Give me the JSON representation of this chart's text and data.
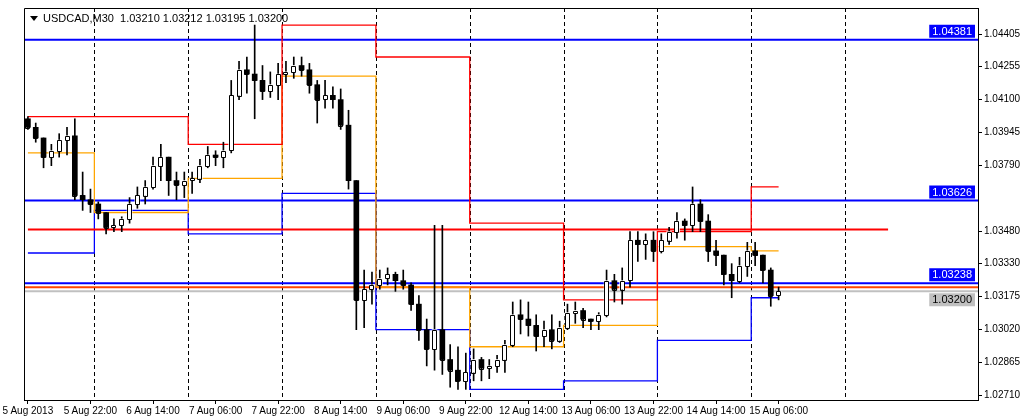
{
  "chart_data": {
    "type": "candlestick",
    "title": "USDCAD,M30  1.03210 1.03212 1.03195 1.03200",
    "color": "#000000",
    "categories": [
      "5 Aug 2013",
      null,
      null,
      null,
      null,
      null,
      null,
      null,
      "5 Aug 22:00",
      null,
      null,
      null,
      null,
      null,
      null,
      null,
      "6 Aug 14:00",
      null,
      null,
      null,
      null,
      null,
      null,
      null,
      "7 Aug 06:00",
      null,
      null,
      null,
      null,
      null,
      null,
      null,
      "7 Aug 22:00",
      null,
      null,
      null,
      null,
      null,
      null,
      null,
      "8 Aug 14:00",
      null,
      null,
      null,
      null,
      null,
      null,
      null,
      "9 Aug 06:00",
      null,
      null,
      null,
      null,
      null,
      null,
      null,
      "9 Aug 22:00",
      null,
      null,
      null,
      null,
      null,
      null,
      null,
      "12 Aug 14:00",
      null,
      null,
      null,
      null,
      null,
      null,
      null,
      "13 Aug 06:00",
      null,
      null,
      null,
      null,
      null,
      null,
      null,
      "13 Aug 22:00",
      null,
      null,
      null,
      null,
      null,
      null,
      null,
      "14 Aug 14:00",
      null,
      null,
      null,
      null,
      null,
      null,
      null,
      "15 Aug 06:00",
      null,
      null,
      null,
      null,
      null,
      null,
      null,
      null,
      null,
      null,
      null,
      null,
      null,
      null,
      null,
      null,
      null,
      null,
      null,
      null,
      null,
      null,
      null,
      null,
      null
    ],
    "ohlc": [
      [
        1.0401,
        1.0402,
        1.0396,
        1.0397
      ],
      [
        1.0397,
        1.0399,
        1.039,
        1.0392
      ],
      [
        1.0392,
        1.0392,
        1.0378,
        1.0383
      ],
      [
        1.0383,
        1.0389,
        1.0379,
        1.0386
      ],
      [
        1.0386,
        1.0394,
        1.0383,
        1.0391
      ],
      [
        1.0391,
        1.0397,
        1.0384,
        1.0393
      ],
      [
        1.0393,
        1.0401,
        1.0363,
        1.0365
      ],
      [
        1.0365,
        1.0376,
        1.0358,
        1.0363
      ],
      [
        1.0363,
        1.0368,
        1.0357,
        1.0361
      ],
      [
        1.0361,
        1.0362,
        1.0354,
        1.0357
      ],
      [
        1.0357,
        1.0357,
        1.0347,
        1.035
      ],
      [
        1.035,
        1.0354,
        1.0348,
        1.0351
      ],
      [
        1.0351,
        1.0355,
        1.0348,
        1.0354
      ],
      [
        1.0354,
        1.0364,
        1.0352,
        1.0361
      ],
      [
        1.0361,
        1.0369,
        1.0359,
        1.0365
      ],
      [
        1.0365,
        1.0372,
        1.0361,
        1.0369
      ],
      [
        1.0369,
        1.0383,
        1.0368,
        1.0379
      ],
      [
        1.0379,
        1.0389,
        1.0372,
        1.0383
      ],
      [
        1.0383,
        1.0383,
        1.0365,
        1.0372
      ],
      [
        1.0372,
        1.0376,
        1.0363,
        1.037
      ],
      [
        1.037,
        1.0376,
        1.0364,
        1.0372
      ],
      [
        1.0372,
        1.0376,
        1.0366,
        1.0373
      ],
      [
        1.0373,
        1.0382,
        1.0371,
        1.0379
      ],
      [
        1.0379,
        1.0388,
        1.0378,
        1.0384
      ],
      [
        1.0384,
        1.0386,
        1.0379,
        1.0383
      ],
      [
        1.0383,
        1.039,
        1.0378,
        1.0386
      ],
      [
        1.0386,
        1.0419,
        1.0385,
        1.0412
      ],
      [
        1.0412,
        1.0428,
        1.041,
        1.0424
      ],
      [
        1.0424,
        1.043,
        1.0413,
        1.0422
      ],
      [
        1.0422,
        1.0445,
        1.0401,
        1.0419
      ],
      [
        1.0419,
        1.0426,
        1.041,
        1.0414
      ],
      [
        1.0414,
        1.0423,
        1.0411,
        1.0417
      ],
      [
        1.0417,
        1.0427,
        1.041,
        1.0422
      ],
      [
        1.0422,
        1.0428,
        1.0418,
        1.0423
      ],
      [
        1.0423,
        1.043,
        1.042,
        1.0426
      ],
      [
        1.0426,
        1.043,
        1.0421,
        1.0424
      ],
      [
        1.0424,
        1.0427,
        1.0413,
        1.0417
      ],
      [
        1.0417,
        1.0419,
        1.0399,
        1.041
      ],
      [
        1.041,
        1.0419,
        1.0406,
        1.0412
      ],
      [
        1.0412,
        1.0416,
        1.0406,
        1.041
      ],
      [
        1.041,
        1.0415,
        1.0396,
        1.0398
      ],
      [
        1.0398,
        1.0405,
        1.0368,
        1.0372
      ],
      [
        1.0372,
        1.0372,
        1.0302,
        1.0316
      ],
      [
        1.0316,
        1.033,
        1.0303,
        1.0321
      ],
      [
        1.0321,
        1.0329,
        1.0314,
        1.0323
      ],
      [
        1.0323,
        1.033,
        1.0321,
        1.0326
      ],
      [
        1.0326,
        1.0331,
        1.0323,
        1.0328
      ],
      [
        1.0328,
        1.0329,
        1.032,
        1.0325
      ],
      [
        1.0325,
        1.033,
        1.0321,
        1.0323
      ],
      [
        1.0323,
        1.0324,
        1.0311,
        1.0314
      ],
      [
        1.0314,
        1.0318,
        1.0297,
        1.0302
      ],
      [
        1.0302,
        1.0307,
        1.0285,
        1.0293
      ],
      [
        1.0293,
        1.0351,
        1.0283,
        1.0302
      ],
      [
        1.0302,
        1.0351,
        1.0281,
        1.0288
      ],
      [
        1.0288,
        1.0295,
        1.0275,
        1.0283
      ],
      [
        1.0283,
        1.0294,
        1.0274,
        1.0278
      ],
      [
        1.0278,
        1.0291,
        1.0274,
        1.0282
      ],
      [
        1.0282,
        1.0293,
        1.0278,
        1.0288
      ],
      [
        1.0288,
        1.0289,
        1.0278,
        1.0284
      ],
      [
        1.0284,
        1.0288,
        1.0279,
        1.0285
      ],
      [
        1.0285,
        1.029,
        1.0282,
        1.0288
      ],
      [
        1.0288,
        1.0297,
        1.0282,
        1.0295
      ],
      [
        1.0295,
        1.0315,
        1.0294,
        1.0309
      ],
      [
        1.0309,
        1.0316,
        1.03,
        1.0307
      ],
      [
        1.0307,
        1.0315,
        1.0299,
        1.0304
      ],
      [
        1.0304,
        1.0309,
        1.0292,
        1.0299
      ],
      [
        1.0299,
        1.0306,
        1.0294,
        1.0302
      ],
      [
        1.0302,
        1.0309,
        1.0293,
        1.0297
      ],
      [
        1.0297,
        1.0306,
        1.0296,
        1.0303
      ],
      [
        1.0303,
        1.0314,
        1.0302,
        1.031
      ],
      [
        1.031,
        1.0315,
        1.0305,
        1.0311
      ],
      [
        1.0311,
        1.0312,
        1.0303,
        1.0307
      ],
      [
        1.0307,
        1.0307,
        1.0302,
        1.0306
      ],
      [
        1.0306,
        1.031,
        1.0302,
        1.0309
      ],
      [
        1.0309,
        1.033,
        1.0308,
        1.0325
      ],
      [
        1.0325,
        1.0328,
        1.0315,
        1.0321
      ],
      [
        1.0321,
        1.0331,
        1.0314,
        1.0325
      ],
      [
        1.0325,
        1.0348,
        1.0322,
        1.0344
      ],
      [
        1.0344,
        1.0348,
        1.0334,
        1.0342
      ],
      [
        1.0342,
        1.0347,
        1.0335,
        1.0344
      ],
      [
        1.0344,
        1.0348,
        1.0334,
        1.0339
      ],
      [
        1.0339,
        1.0347,
        1.0338,
        1.0344
      ],
      [
        1.0344,
        1.035,
        1.0342,
        1.0348
      ],
      [
        1.0348,
        1.0357,
        1.0345,
        1.0353
      ],
      [
        1.0353,
        1.0354,
        1.0344,
        1.0351
      ],
      [
        1.0351,
        1.0369,
        1.0348,
        1.0361
      ],
      [
        1.0361,
        1.0363,
        1.0348,
        1.0353
      ],
      [
        1.0353,
        1.0356,
        1.0334,
        1.0339
      ],
      [
        1.0339,
        1.0344,
        1.0332,
        1.0337
      ],
      [
        1.0337,
        1.0337,
        1.0323,
        1.0328
      ],
      [
        1.0328,
        1.0333,
        1.0317,
        1.0325
      ],
      [
        1.0325,
        1.0336,
        1.0324,
        1.0332
      ],
      [
        1.0332,
        1.0343,
        1.0327,
        1.0339
      ],
      [
        1.0339,
        1.0343,
        1.0332,
        1.0337
      ],
      [
        1.0337,
        1.0337,
        1.0324,
        1.033
      ],
      [
        1.033,
        1.0331,
        1.0313,
        1.0318
      ],
      [
        1.0318,
        1.0322,
        1.0316,
        1.032
      ],
      null,
      null,
      null,
      null,
      null,
      null,
      null,
      null,
      null,
      null,
      null,
      null,
      null,
      null,
      null,
      null,
      null,
      null,
      null,
      null,
      null,
      null,
      null,
      null,
      null
    ],
    "colors": [
      "#000000",
      "#000000",
      "#000000",
      "#ffffff",
      "#ffffff",
      "#ffffff",
      "#000000",
      "#000000",
      "#000000",
      "#000000",
      "#000000",
      "#ffffff",
      "#ffffff",
      "#ffffff",
      "#ffffff",
      "#ffffff",
      "#ffffff",
      "#ffffff",
      "#000000",
      "#000000",
      "#ffffff",
      "#ffffff",
      "#ffffff",
      "#ffffff",
      "#000000",
      "#ffffff",
      "#ffffff",
      "#ffffff",
      "#000000",
      "#000000",
      "#000000",
      "#ffffff",
      "#ffffff",
      "#ffffff",
      "#ffffff",
      "#000000",
      "#000000",
      "#000000",
      "#ffffff",
      "#000000",
      "#000000",
      "#000000",
      "#000000",
      "#ffffff",
      "#ffffff",
      "#ffffff",
      "#ffffff",
      "#000000",
      "#000000",
      "#000000",
      "#000000",
      "#000000",
      "#ffffff",
      "#000000",
      "#000000",
      "#000000",
      "#ffffff",
      "#ffffff",
      "#000000",
      "#ffffff",
      "#ffffff",
      "#ffffff",
      "#ffffff",
      "#000000",
      "#000000",
      "#000000",
      "#ffffff",
      "#000000",
      "#ffffff",
      "#ffffff",
      "#ffffff",
      "#000000",
      "#000000",
      "#ffffff",
      "#ffffff",
      "#000000",
      "#ffffff",
      "#ffffff",
      "#000000",
      "#ffffff",
      "#000000",
      "#ffffff",
      "#ffffff",
      "#ffffff",
      "#000000",
      "#ffffff",
      "#000000",
      "#000000",
      "#000000",
      "#000000",
      "#000000",
      "#ffffff",
      "#ffffff",
      "#000000",
      "#000000",
      "#000000",
      "#ffffff",
      null,
      null,
      null,
      null,
      null,
      null,
      null,
      null,
      null,
      null,
      null,
      null,
      null,
      null,
      null,
      null,
      null,
      null,
      null,
      null,
      null,
      null,
      null,
      null,
      null
    ],
    "series": [
      {
        "type": "step",
        "color": "#ff0000",
        "values": [
          1.0402,
          1.0402,
          1.0402,
          1.0402,
          1.0402,
          1.0402,
          1.0402,
          1.0402,
          1.0402,
          1.0402,
          1.0402,
          1.0402,
          1.0402,
          1.0402,
          1.0402,
          1.0402,
          1.0402,
          1.0402,
          1.0402,
          1.0402,
          1.0402,
          1.0389,
          1.0389,
          1.0389,
          1.0389,
          1.0389,
          1.0389,
          1.0389,
          1.0389,
          1.0389,
          1.0389,
          1.0389,
          1.0389,
          1.0445,
          1.0445,
          1.0445,
          1.0445,
          1.0445,
          1.0445,
          1.0445,
          1.0445,
          1.0445,
          1.0445,
          1.0445,
          1.0445,
          1.043,
          1.043,
          1.043,
          1.043,
          1.043,
          1.043,
          1.043,
          1.043,
          1.043,
          1.043,
          1.043,
          1.043,
          1.0352,
          1.0352,
          1.0352,
          1.0352,
          1.0352,
          1.0352,
          1.0352,
          1.0352,
          1.0352,
          1.0352,
          1.0352,
          1.0352,
          1.0316,
          1.0316,
          1.0316,
          1.0316,
          1.0316,
          1.0316,
          1.0316,
          1.0316,
          1.0316,
          1.0316,
          1.0316,
          1.0316,
          1.0348,
          1.0348,
          1.0348,
          1.0348,
          1.0348,
          1.0348,
          1.0348,
          1.0348,
          1.0348,
          1.0348,
          1.0348,
          1.0348,
          1.0369,
          1.0369,
          1.0369,
          1.0369,
          null,
          null,
          null,
          null,
          null,
          null,
          null,
          null,
          null,
          null,
          null,
          null,
          null,
          null,
          null,
          null,
          null,
          null,
          null,
          null,
          null,
          null,
          null,
          null,
          null
        ]
      },
      {
        "type": "step",
        "color": "#ffa500",
        "values": [
          1.0385,
          1.0385,
          1.0385,
          1.0385,
          1.0385,
          1.0385,
          1.0385,
          1.0385,
          1.0385,
          1.0357,
          1.0357,
          1.0357,
          1.0357,
          1.0357,
          1.0357,
          1.0357,
          1.0357,
          1.0357,
          1.0357,
          1.0357,
          1.0357,
          1.0373,
          1.0373,
          1.0373,
          1.0373,
          1.0373,
          1.0373,
          1.0373,
          1.0373,
          1.0373,
          1.0373,
          1.0373,
          1.0373,
          1.0421,
          1.0421,
          1.0421,
          1.0421,
          1.0421,
          1.0421,
          1.0421,
          1.0421,
          1.0421,
          1.0421,
          1.0421,
          1.0421,
          1.0322,
          1.0322,
          1.0322,
          1.0322,
          1.0322,
          1.0322,
          1.0322,
          1.0322,
          1.0322,
          1.0322,
          1.0322,
          1.0322,
          1.0294,
          1.0294,
          1.0294,
          1.0294,
          1.0294,
          1.0294,
          1.0294,
          1.0294,
          1.0294,
          1.0294,
          1.0294,
          1.0294,
          1.0304,
          1.0304,
          1.0304,
          1.0304,
          1.0304,
          1.0304,
          1.0304,
          1.0304,
          1.0304,
          1.0304,
          1.0304,
          1.0304,
          1.0341,
          1.0341,
          1.0341,
          1.0341,
          1.0341,
          1.0341,
          1.0341,
          1.0341,
          1.0341,
          1.0341,
          1.0341,
          1.0341,
          1.0339,
          1.0339,
          1.0339,
          1.0339,
          null,
          null,
          null,
          null,
          null,
          null,
          null,
          null,
          null,
          null,
          null,
          null,
          null,
          null,
          null,
          null,
          null,
          null,
          null,
          null,
          null,
          null,
          null,
          null,
          null
        ]
      },
      {
        "type": "step",
        "color": "#0000ff",
        "values": [
          1.0338,
          1.0338,
          1.0338,
          1.0338,
          1.0338,
          1.0338,
          1.0338,
          1.0338,
          1.0338,
          1.0358,
          1.0358,
          1.0358,
          1.0358,
          1.0358,
          1.0358,
          1.0358,
          1.0358,
          1.0358,
          1.0358,
          1.0358,
          1.0358,
          1.0347,
          1.0347,
          1.0347,
          1.0347,
          1.0347,
          1.0347,
          1.0347,
          1.0347,
          1.0347,
          1.0347,
          1.0347,
          1.0347,
          1.0366,
          1.0366,
          1.0366,
          1.0366,
          1.0366,
          1.0366,
          1.0366,
          1.0366,
          1.0366,
          1.0366,
          1.0366,
          1.0366,
          1.0302,
          1.0302,
          1.0302,
          1.0302,
          1.0302,
          1.0302,
          1.0302,
          1.0302,
          1.0302,
          1.0302,
          1.0302,
          1.0302,
          1.0274,
          1.0274,
          1.0274,
          1.0274,
          1.0274,
          1.0274,
          1.0274,
          1.0274,
          1.0274,
          1.0274,
          1.0274,
          1.0274,
          1.0278,
          1.0278,
          1.0278,
          1.0278,
          1.0278,
          1.0278,
          1.0278,
          1.0278,
          1.0278,
          1.0278,
          1.0278,
          1.0278,
          1.0297,
          1.0297,
          1.0297,
          1.0297,
          1.0297,
          1.0297,
          1.0297,
          1.0297,
          1.0297,
          1.0297,
          1.0297,
          1.0297,
          1.0317,
          1.0317,
          1.0317,
          1.0317,
          null,
          null,
          null,
          null,
          null,
          null,
          null,
          null,
          null,
          null,
          null,
          null,
          null,
          null,
          null,
          null,
          null,
          null,
          null,
          null,
          null,
          null,
          null,
          null,
          null
        ]
      },
      {
        "type": "line",
        "color": "#ff0000",
        "values": [
          1.0349,
          1.0349,
          1.0349,
          1.0349,
          1.0349,
          1.0349,
          1.0349,
          1.0349,
          1.0349,
          1.0349,
          1.0349,
          1.0349,
          1.0349,
          1.0349,
          1.0349,
          1.0349,
          1.0349,
          1.0349,
          1.0349,
          1.0349,
          1.0349,
          1.0349,
          1.0349,
          1.0349,
          1.0349,
          1.0349,
          1.0349,
          1.0349,
          1.0349,
          1.0349,
          1.0349,
          1.0349,
          1.0349,
          1.0349,
          1.0349,
          1.0349,
          1.0349,
          1.0349,
          1.0349,
          1.0349,
          1.0349,
          1.0349,
          1.0349,
          1.0349,
          1.0349,
          1.0349,
          1.0349,
          1.0349,
          1.0349,
          1.0349,
          1.0349,
          1.0349,
          1.0349,
          1.0349,
          1.0349,
          1.0349,
          1.0349,
          1.0349,
          1.0349,
          1.0349,
          1.0349,
          1.0349,
          1.0349,
          1.0349,
          1.0349,
          1.0349,
          1.0349,
          1.0349,
          1.0349,
          1.0349,
          1.0349,
          1.0349,
          1.0349,
          1.0349,
          1.0349,
          1.0349,
          1.0349,
          1.0349,
          1.0349,
          1.0349,
          1.0349,
          1.0349,
          1.0349,
          1.0349,
          1.0349,
          1.0349,
          1.0349,
          1.0349,
          1.0349,
          1.0349,
          1.0349,
          1.0349,
          1.0349,
          1.0349,
          1.0349,
          1.0349,
          1.0349,
          1.0349,
          1.0349,
          1.0349,
          1.0349,
          1.0349,
          1.0349,
          1.0349,
          1.0349,
          1.0349,
          1.0349,
          1.0349,
          1.0349,
          1.0349,
          1.0349,
          null,
          null,
          null,
          null,
          null,
          null,
          null,
          null,
          null,
          null,
          null
        ]
      }
    ],
    "ylim": [
      1.0269,
      1.0453
    ],
    "yticks": [
      {
        "value": 1.04405,
        "label": "1.04405"
      },
      {
        "value": 1.04255,
        "label": "1.04255"
      },
      {
        "value": 1.041,
        "label": "1.04100"
      },
      {
        "value": 1.03945,
        "label": "1.03945"
      },
      {
        "value": 1.0379,
        "label": "1.03790"
      },
      {
        "value": 1.0348,
        "label": "1.03480"
      },
      {
        "value": 1.0333,
        "label": "1.03330"
      },
      {
        "value": 1.03175,
        "label": "1.03175"
      },
      {
        "value": 1.0302,
        "label": "1.03020"
      },
      {
        "value": 1.02865,
        "label": "1.02865"
      },
      {
        "value": 1.0271,
        "label": "1.02710"
      }
    ],
    "ref_lines": [
      {
        "axis": "y",
        "value": 1.04381,
        "label": "1.04381",
        "color": "#0000ff"
      },
      {
        "axis": "y",
        "value": 1.03626,
        "label": "1.03626",
        "color": "#0000ff"
      },
      {
        "axis": "y",
        "value": 1.03238,
        "label": "1.03238",
        "color": "#0000ff"
      },
      {
        "axis": "y",
        "value": 1.03219,
        "color": "#ff4500"
      },
      {
        "axis": "y",
        "value": 1.032,
        "label": "1.03200",
        "color": "#c0c0c0"
      }
    ]
  }
}
